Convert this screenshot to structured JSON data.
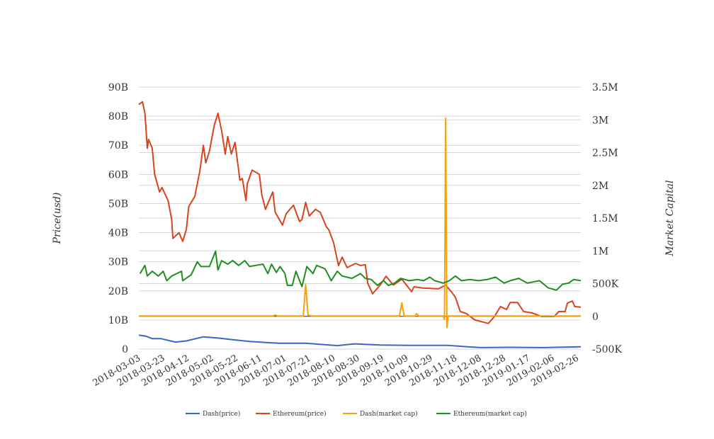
{
  "chart_data": {
    "type": "line",
    "start_date": "2018-03-03",
    "x_unit": "days since 2018-03-03",
    "xlim": [
      0,
      363
    ],
    "x_tick_labels": [
      "2018-03-03",
      "2018-03-23",
      "2018-04-12",
      "2018-05-02",
      "2018-05-22",
      "2018-06-11",
      "2018-07-01",
      "2018-07-21",
      "2018-08-10",
      "2018-08-30",
      "2018-09-19",
      "2018-10-09",
      "2018-10-29",
      "2018-11-18",
      "2018-12-08",
      "2018-12-28",
      "2019-01-17",
      "2019-02-06",
      "2019-02-26"
    ],
    "ylabel_left": "Price(usd)",
    "ylabel_right": "Market Capital",
    "ylim_left": [
      0,
      90
    ],
    "ylim_right": [
      -500,
      3500
    ],
    "y_left_ticks": [
      "0",
      "10B",
      "20B",
      "30B",
      "40B",
      "50B",
      "60B",
      "70B",
      "80B",
      "90B"
    ],
    "y_right_ticks": [
      "-500K",
      "0",
      "500K",
      "1M",
      "1.5M",
      "2M",
      "2.5M",
      "3M",
      "3.5M"
    ],
    "left_unit": "billions",
    "right_unit": "thousands",
    "grid": true,
    "legend_position": "bottom",
    "series": [
      {
        "name": "Dash(price)",
        "axis": "left",
        "color": "#3b68c4",
        "points": [
          [
            0,
            4.8
          ],
          [
            6,
            4.4
          ],
          [
            11,
            3.6
          ],
          [
            18,
            3.6
          ],
          [
            30,
            2.4
          ],
          [
            39,
            2.8
          ],
          [
            53,
            4.2
          ],
          [
            65,
            3.8
          ],
          [
            77,
            3.2
          ],
          [
            91,
            2.6
          ],
          [
            115,
            2.0
          ],
          [
            137,
            2.0
          ],
          [
            163,
            1.2
          ],
          [
            177,
            1.8
          ],
          [
            198,
            1.4
          ],
          [
            222,
            1.3
          ],
          [
            253,
            1.3
          ],
          [
            270,
            0.8
          ],
          [
            281,
            0.5
          ],
          [
            305,
            0.6
          ],
          [
            333,
            0.5
          ],
          [
            363,
            0.8
          ]
        ]
      },
      {
        "name": "Ethereum(price)",
        "axis": "left",
        "color": "#d8431b",
        "points": [
          [
            0,
            84
          ],
          [
            3,
            85
          ],
          [
            5,
            81
          ],
          [
            7,
            69
          ],
          [
            8,
            72
          ],
          [
            11,
            69
          ],
          [
            13,
            60
          ],
          [
            17,
            54
          ],
          [
            19,
            55.5
          ],
          [
            24,
            51
          ],
          [
            27,
            44.5
          ],
          [
            28,
            38
          ],
          [
            33,
            40
          ],
          [
            36,
            37
          ],
          [
            39,
            41
          ],
          [
            41,
            49
          ],
          [
            46,
            52.5
          ],
          [
            50,
            61
          ],
          [
            53,
            70
          ],
          [
            55,
            64
          ],
          [
            58,
            68
          ],
          [
            62,
            77
          ],
          [
            65,
            81
          ],
          [
            68,
            75
          ],
          [
            71,
            67
          ],
          [
            73,
            73
          ],
          [
            76,
            67
          ],
          [
            79,
            71
          ],
          [
            83,
            58
          ],
          [
            85,
            58.6
          ],
          [
            88,
            51
          ],
          [
            89,
            56.7
          ],
          [
            93,
            61.5
          ],
          [
            99,
            60
          ],
          [
            101,
            53
          ],
          [
            104,
            48
          ],
          [
            106,
            50
          ],
          [
            110,
            54
          ],
          [
            112,
            47
          ],
          [
            118,
            42.6
          ],
          [
            121,
            46.5
          ],
          [
            127,
            49.4
          ],
          [
            132,
            43.8
          ],
          [
            134,
            44.5
          ],
          [
            137,
            50.4
          ],
          [
            140,
            45.7
          ],
          [
            145,
            48
          ],
          [
            149,
            47
          ],
          [
            154,
            42
          ],
          [
            156,
            41
          ],
          [
            160,
            36.5
          ],
          [
            164,
            28.7
          ],
          [
            167,
            31.6
          ],
          [
            171,
            28
          ],
          [
            178,
            29.4
          ],
          [
            182,
            28.7
          ],
          [
            186,
            29
          ],
          [
            188,
            22.6
          ],
          [
            192,
            19
          ],
          [
            198,
            21.9
          ],
          [
            203,
            25
          ],
          [
            209,
            22
          ],
          [
            216,
            24
          ],
          [
            224,
            19.7
          ],
          [
            226,
            21.4
          ],
          [
            233,
            21
          ],
          [
            246,
            20.7
          ],
          [
            252,
            22
          ],
          [
            257,
            19.5
          ],
          [
            260,
            17.8
          ],
          [
            264,
            12.9
          ],
          [
            269,
            12.2
          ],
          [
            276,
            10
          ],
          [
            287,
            8.8
          ],
          [
            292,
            11.2
          ],
          [
            297,
            14.6
          ],
          [
            302,
            13.6
          ],
          [
            305,
            16
          ],
          [
            311,
            16
          ],
          [
            316,
            12.9
          ],
          [
            323,
            12.4
          ],
          [
            331,
            11.2
          ],
          [
            341,
            11.2
          ],
          [
            345,
            12.9
          ],
          [
            350,
            12.9
          ],
          [
            352,
            15.8
          ],
          [
            356,
            16.5
          ],
          [
            358,
            14.6
          ],
          [
            363,
            14.4
          ]
        ]
      },
      {
        "name": "Dash(market cap)",
        "axis": "right",
        "color": "#f4a20c",
        "points": [
          [
            0,
            5
          ],
          [
            110,
            5
          ],
          [
            112,
            20
          ],
          [
            114,
            5
          ],
          [
            135,
            5
          ],
          [
            137,
            486
          ],
          [
            139,
            20
          ],
          [
            142,
            5
          ],
          [
            214,
            5
          ],
          [
            216,
            206
          ],
          [
            218,
            5
          ],
          [
            227,
            5
          ],
          [
            228,
            42
          ],
          [
            230,
            5
          ],
          [
            250,
            5
          ],
          [
            251,
            -50
          ],
          [
            252,
            3027
          ],
          [
            253,
            -173
          ],
          [
            254,
            5
          ],
          [
            363,
            5
          ]
        ]
      },
      {
        "name": "Ethereum(market cap)",
        "axis": "right",
        "color": "#1e8e1e",
        "points": [
          [
            1,
            652
          ],
          [
            5,
            778
          ],
          [
            7,
            616
          ],
          [
            11,
            688
          ],
          [
            16,
            616
          ],
          [
            20,
            688
          ],
          [
            23,
            544
          ],
          [
            27,
            616
          ],
          [
            35,
            688
          ],
          [
            36,
            544
          ],
          [
            43,
            634
          ],
          [
            48,
            832
          ],
          [
            51,
            760
          ],
          [
            58,
            760
          ],
          [
            63,
            994
          ],
          [
            65,
            706
          ],
          [
            68,
            850
          ],
          [
            73,
            796
          ],
          [
            77,
            850
          ],
          [
            82,
            778
          ],
          [
            87,
            850
          ],
          [
            91,
            760
          ],
          [
            96,
            778
          ],
          [
            102,
            796
          ],
          [
            106,
            652
          ],
          [
            109,
            796
          ],
          [
            113,
            670
          ],
          [
            116,
            760
          ],
          [
            120,
            652
          ],
          [
            122,
            472
          ],
          [
            126,
            472
          ],
          [
            129,
            688
          ],
          [
            134,
            454
          ],
          [
            138,
            760
          ],
          [
            143,
            652
          ],
          [
            146,
            778
          ],
          [
            153,
            724
          ],
          [
            158,
            544
          ],
          [
            163,
            688
          ],
          [
            167,
            616
          ],
          [
            175,
            580
          ],
          [
            182,
            652
          ],
          [
            186,
            580
          ],
          [
            191,
            562
          ],
          [
            196,
            472
          ],
          [
            201,
            544
          ],
          [
            205,
            472
          ],
          [
            210,
            508
          ],
          [
            215,
            580
          ],
          [
            222,
            544
          ],
          [
            229,
            562
          ],
          [
            234,
            544
          ],
          [
            239,
            598
          ],
          [
            243,
            544
          ],
          [
            250,
            508
          ],
          [
            255,
            544
          ],
          [
            260,
            616
          ],
          [
            265,
            544
          ],
          [
            272,
            562
          ],
          [
            279,
            544
          ],
          [
            286,
            562
          ],
          [
            293,
            598
          ],
          [
            300,
            508
          ],
          [
            305,
            544
          ],
          [
            312,
            580
          ],
          [
            319,
            508
          ],
          [
            329,
            544
          ],
          [
            336,
            436
          ],
          [
            343,
            400
          ],
          [
            348,
            490
          ],
          [
            353,
            508
          ],
          [
            357,
            562
          ],
          [
            363,
            544
          ]
        ]
      }
    ]
  }
}
